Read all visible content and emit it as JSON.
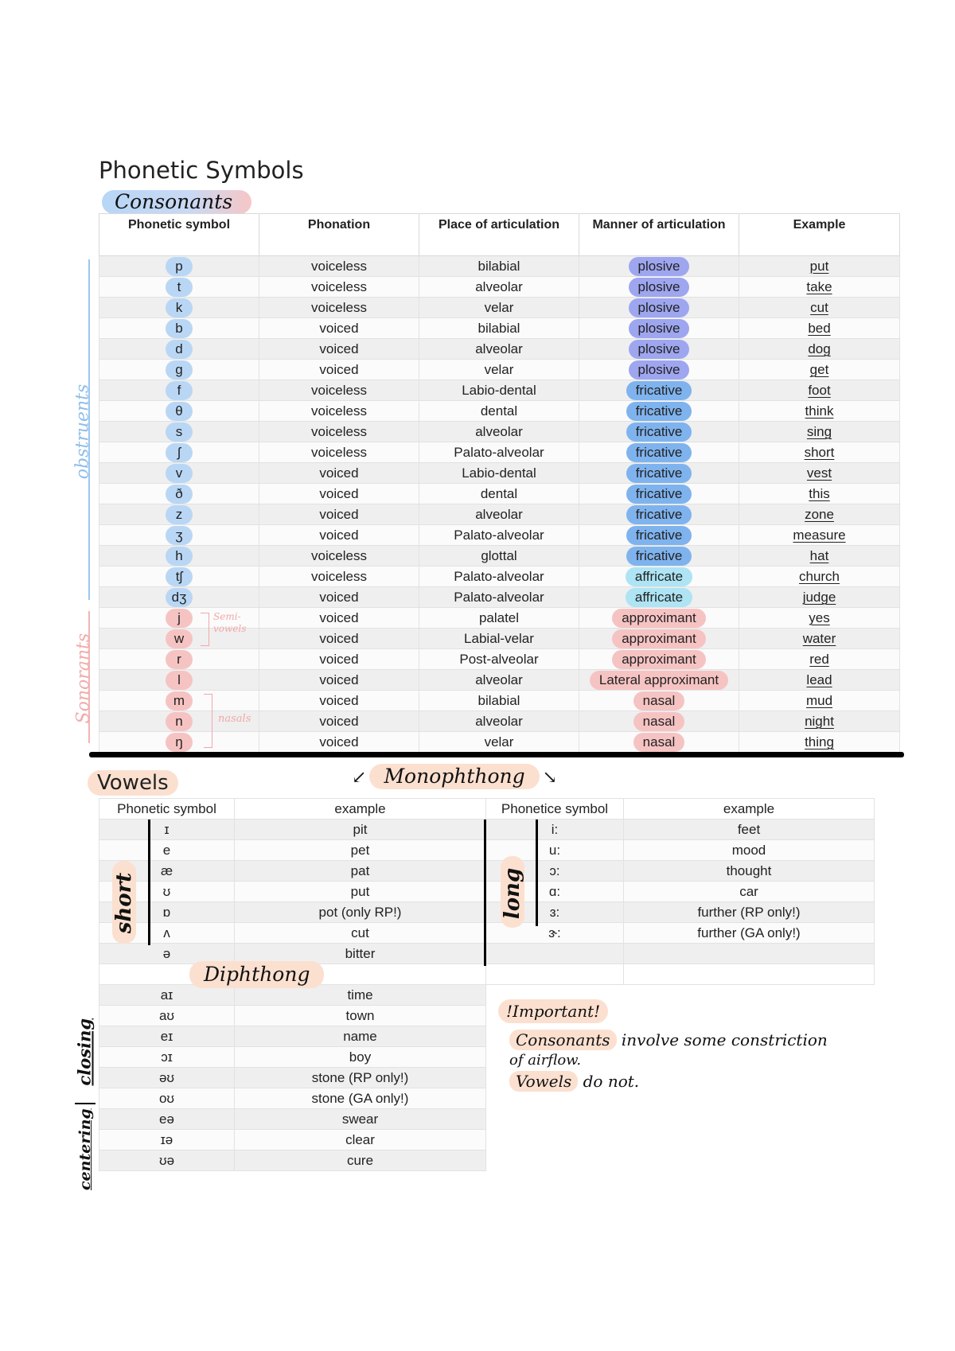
{
  "page_title": "Phonetic Symbols",
  "consonants": {
    "heading": "Consonants",
    "columns": [
      "Phonetic symbol",
      "Phonation",
      "Place of articulation",
      "Manner of articulation",
      "Example"
    ],
    "rows": [
      {
        "symbol": "p",
        "phonation": "voiceless",
        "place": "bilabial",
        "manner": "plosive",
        "example": "put"
      },
      {
        "symbol": "t",
        "phonation": "voiceless",
        "place": "alveolar",
        "manner": "plosive",
        "example": "take"
      },
      {
        "symbol": "k",
        "phonation": "voiceless",
        "place": "velar",
        "manner": "plosive",
        "example": "cut"
      },
      {
        "symbol": "b",
        "phonation": "voiced",
        "place": "bilabial",
        "manner": "plosive",
        "example": "bed"
      },
      {
        "symbol": "d",
        "phonation": "voiced",
        "place": "alveolar",
        "manner": "plosive",
        "example": "dog"
      },
      {
        "symbol": "g",
        "phonation": "voiced",
        "place": "velar",
        "manner": "plosive",
        "example": "get"
      },
      {
        "symbol": "f",
        "phonation": "voiceless",
        "place": "Labio-dental",
        "manner": "fricative",
        "example": "foot"
      },
      {
        "symbol": "θ",
        "phonation": "voiceless",
        "place": "dental",
        "manner": "fricative",
        "example": "think"
      },
      {
        "symbol": "s",
        "phonation": "voiceless",
        "place": "alveolar",
        "manner": "fricative",
        "example": "sing"
      },
      {
        "symbol": "ʃ",
        "phonation": "voiceless",
        "place": "Palato-alveolar",
        "manner": "fricative",
        "example": "short"
      },
      {
        "symbol": "v",
        "phonation": "voiced",
        "place": "Labio-dental",
        "manner": "fricative",
        "example": "vest"
      },
      {
        "symbol": "ð",
        "phonation": "voiced",
        "place": "dental",
        "manner": "fricative",
        "example": "this"
      },
      {
        "symbol": "z",
        "phonation": "voiced",
        "place": "alveolar",
        "manner": "fricative",
        "example": "zone"
      },
      {
        "symbol": "ʒ",
        "phonation": "voiced",
        "place": "Palato-alveolar",
        "manner": "fricative",
        "example": "measure"
      },
      {
        "symbol": "h",
        "phonation": "voiceless",
        "place": "glottal",
        "manner": "fricative",
        "example": "hat"
      },
      {
        "symbol": "tʃ",
        "phonation": "voiceless",
        "place": "Palato-alveolar",
        "manner": "affricate",
        "example": "church"
      },
      {
        "symbol": "dʒ",
        "phonation": "voiced",
        "place": "Palato-alveolar",
        "manner": "affricate",
        "example": "judge"
      },
      {
        "symbol": "j",
        "phonation": "voiced",
        "place": "palatel",
        "manner": "approximant",
        "example": "yes"
      },
      {
        "symbol": "w",
        "phonation": "voiced",
        "place": "Labial-velar",
        "manner": "approximant",
        "example": "water"
      },
      {
        "symbol": "r",
        "phonation": "voiced",
        "place": "Post-alveolar",
        "manner": "approximant",
        "example": "red"
      },
      {
        "symbol": "l",
        "phonation": "voiced",
        "place": "alveolar",
        "manner": "Lateral approximant",
        "example": "lead"
      },
      {
        "symbol": "m",
        "phonation": "voiced",
        "place": "bilabial",
        "manner": "nasal",
        "example": "mud"
      },
      {
        "symbol": "n",
        "phonation": "voiced",
        "place": "alveolar",
        "manner": "nasal",
        "example": "night"
      },
      {
        "symbol": "ŋ",
        "phonation": "voiced",
        "place": "velar",
        "manner": "nasal",
        "example": "thing"
      }
    ],
    "side_labels": {
      "obstruents": "obstruents",
      "sonorants": "Sonorants",
      "semi_vowels": "Semi-vowels",
      "nasals": "nasals"
    }
  },
  "vowels": {
    "heading": "Vowels",
    "monophthong_label": "Monophthong",
    "diphthong_label": "Diphthong",
    "columns": [
      "Phonetic symbol",
      "example",
      "Phonetice symbol",
      "example"
    ],
    "short_label": "short",
    "long_label": "long",
    "short": [
      {
        "symbol": "ɪ",
        "example": "pit"
      },
      {
        "symbol": "e",
        "example": "pet"
      },
      {
        "symbol": "æ",
        "example": "pat"
      },
      {
        "symbol": "ʊ",
        "example": "put"
      },
      {
        "symbol": "ɒ",
        "example": "pot (only RP!)"
      },
      {
        "symbol": "ʌ",
        "example": "cut"
      },
      {
        "symbol": "ə",
        "example": "bitter"
      }
    ],
    "long": [
      {
        "symbol": "i:",
        "example": "feet"
      },
      {
        "symbol": "u:",
        "example": "mood"
      },
      {
        "symbol": "ɔ:",
        "example": "thought"
      },
      {
        "symbol": "ɑ:",
        "example": "car"
      },
      {
        "symbol": "ɜ:",
        "example": "further (RP only!)"
      },
      {
        "symbol": "ɝ:",
        "example": "further (GA only!)"
      }
    ],
    "closing_label": "closing",
    "centering_label": "centering",
    "diphthongs": [
      {
        "symbol": "aɪ",
        "example": "time"
      },
      {
        "symbol": "aʊ",
        "example": "town"
      },
      {
        "symbol": "eɪ",
        "example": "name"
      },
      {
        "symbol": "ɔɪ",
        "example": "boy"
      },
      {
        "symbol": "əʊ",
        "example": "stone (RP only!)"
      },
      {
        "symbol": "oʊ",
        "example": "stone (GA only!)"
      },
      {
        "symbol": "eə",
        "example": "swear"
      },
      {
        "symbol": "ɪə",
        "example": "clear"
      },
      {
        "symbol": "ʊə",
        "example": "cure"
      }
    ]
  },
  "note": {
    "title": "!Important!",
    "line1_highlight": "Consonants",
    "line1_rest": "involve some constriction",
    "line2": "of airflow.",
    "line3_highlight": "Vowels",
    "line3_rest": "do not."
  },
  "colors": {
    "plosive": "#9ea6f0",
    "fricative": "#7fb3ee",
    "affricate": "#aee4f4",
    "sonorant": "#f6c3c3",
    "obstruent_symbol": "#b9d7f5",
    "obstruent_line": "#9cc6ef",
    "sonorant_line": "#f4b3b3",
    "peach": "#fbe0d0"
  }
}
